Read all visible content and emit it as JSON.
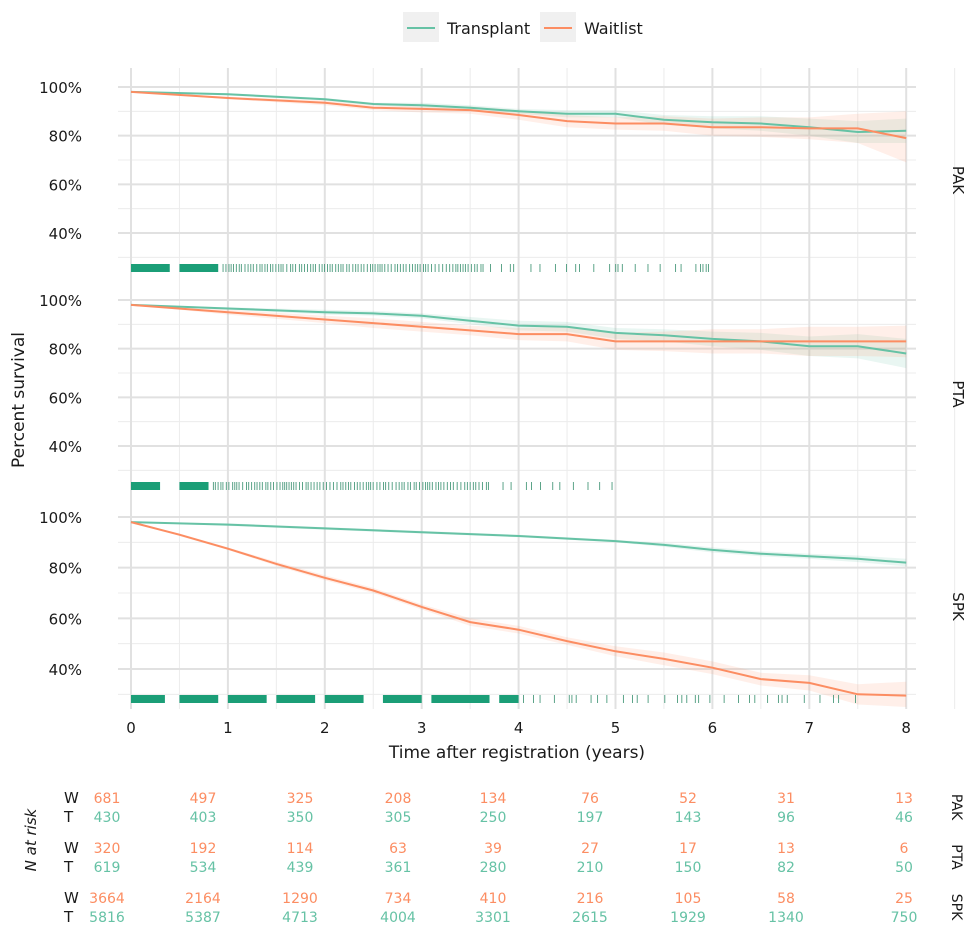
{
  "chart_data": {
    "type": "line",
    "legend": {
      "placement": "top",
      "items": [
        {
          "name": "Transplant",
          "color": "#66c2a5"
        },
        {
          "name": "Waitlist",
          "color": "#fc8d62"
        }
      ]
    },
    "ylabel": "Percent survival",
    "xlabel": "Time after registration (years)",
    "x_ticks": [
      0,
      1,
      2,
      3,
      4,
      5,
      6,
      7,
      8
    ],
    "xlim": [
      0,
      8
    ],
    "y_ticks": [
      "100%",
      "80%",
      "60%",
      "40%"
    ],
    "ylim": [
      25,
      100
    ],
    "panels": [
      {
        "name": "PAK",
        "series": [
          {
            "name": "Transplant",
            "x": [
              0,
              1,
              2,
              2.5,
              3,
              3.5,
              4,
              4.5,
              5,
              5.5,
              6,
              6.5,
              7,
              7.5,
              8
            ],
            "y": [
              98,
              97,
              95,
              93,
              92.5,
              91.5,
              90,
              89,
              89,
              86.5,
              85.5,
              85,
              83.5,
              81.5,
              82
            ],
            "ci_upper": [
              98,
              97.5,
              95.5,
              93.5,
              93.5,
              92.5,
              91,
              90.5,
              90.5,
              88.5,
              88,
              88,
              87,
              86,
              87
            ],
            "ci_lower": [
              98,
              96.5,
              94.5,
              92.5,
              91.5,
              90.5,
              89,
              87.5,
              87.5,
              84.5,
              83,
              82,
              80,
              77,
              77
            ]
          },
          {
            "name": "Waitlist",
            "x": [
              0,
              1,
              2,
              2.5,
              3,
              3.5,
              4,
              4.5,
              5,
              5.5,
              6,
              6.5,
              7,
              7.5,
              8
            ],
            "y": [
              98,
              95.5,
              93.5,
              91.5,
              91,
              90.5,
              88.5,
              86,
              85,
              85,
              83.5,
              83.5,
              83,
              83,
              79
            ],
            "ci_upper": [
              98,
              96,
              94.5,
              92.5,
              92,
              92,
              90.5,
              88.5,
              87.5,
              88,
              87,
              87.5,
              87.5,
              89,
              90
            ],
            "ci_lower": [
              98,
              95,
              92.5,
              90.5,
              89.5,
              89,
              86.5,
              83.5,
              82.5,
              82,
              80,
              79.5,
              78.5,
              77,
              69
            ]
          }
        ]
      },
      {
        "name": "PTA",
        "series": [
          {
            "name": "Transplant",
            "x": [
              0,
              1,
              2,
              2.5,
              3,
              3.5,
              4,
              4.5,
              5,
              5.5,
              6,
              6.5,
              7,
              7.5,
              8
            ],
            "y": [
              98,
              96.5,
              95,
              94.5,
              93.5,
              91.5,
              89.5,
              89,
              86.5,
              85.5,
              84,
              83,
              81,
              81,
              78
            ],
            "ci_upper": [
              98,
              97,
              96,
              95.5,
              94.5,
              93,
              91.5,
              91,
              88.5,
              88,
              87,
              86.5,
              85,
              86,
              84
            ],
            "ci_lower": [
              98,
              96,
              94,
              93.5,
              92.5,
              90,
              87.5,
              87,
              84,
              83,
              81,
              79.5,
              77,
              76,
              72
            ]
          },
          {
            "name": "Waitlist",
            "x": [
              0,
              1,
              2,
              2.5,
              3,
              3.5,
              4,
              4.5,
              5,
              5.5,
              6,
              6.5,
              7,
              7.5,
              8
            ],
            "y": [
              98,
              95,
              92,
              90.5,
              89,
              87.5,
              86,
              86,
              83,
              83,
              83,
              83,
              83,
              83,
              83
            ],
            "ci_upper": [
              98,
              96,
              93.5,
              92.5,
              91,
              89.5,
              88.5,
              89,
              86.5,
              87,
              88,
              88,
              89,
              89,
              89.5
            ],
            "ci_lower": [
              98,
              94,
              90.5,
              88.5,
              87,
              85.5,
              83.5,
              83,
              79.5,
              79,
              78,
              78,
              77,
              77,
              76.5
            ]
          }
        ]
      },
      {
        "name": "SPK",
        "series": [
          {
            "name": "Transplant",
            "x": [
              0,
              1,
              2,
              3,
              4,
              5,
              5.5,
              6,
              6.5,
              7,
              7.5,
              8
            ],
            "y": [
              98,
              97,
              95.5,
              94,
              92.5,
              90.5,
              89,
              87,
              85.5,
              84.5,
              83.5,
              82
            ],
            "ci_upper": [
              98,
              97.5,
              96,
              94.5,
              93,
              91,
              89.8,
              88,
              86.5,
              85.5,
              84.8,
              83.5
            ],
            "ci_lower": [
              98,
              96.5,
              95,
              93.5,
              92,
              90,
              88.2,
              86,
              84.5,
              83.5,
              82.2,
              80.5
            ]
          },
          {
            "name": "Waitlist",
            "x": [
              0,
              0.5,
              1,
              1.5,
              2,
              2.5,
              3,
              3.5,
              4,
              4.5,
              5,
              5.5,
              6,
              6.5,
              7,
              7.5,
              8
            ],
            "y": [
              98,
              93,
              87.5,
              81.5,
              76,
              71,
              64.5,
              58.5,
              55.5,
              51,
              47,
              44,
              40.5,
              36,
              34.5,
              30,
              29.5
            ],
            "ci_upper": [
              98,
              93.5,
              88,
              82.3,
              77,
              72,
              65.5,
              60,
              57,
              52.5,
              49,
              46.5,
              43,
              38.5,
              37.5,
              34,
              35
            ],
            "ci_lower": [
              98,
              92.5,
              87,
              80.7,
              75,
              70,
              63.5,
              57,
              54,
              49.5,
              45,
              41.5,
              38,
              33.5,
              31.5,
              26,
              25
            ]
          }
        ]
      }
    ],
    "at_risk": {
      "label": "N at risk",
      "row_labels": {
        "W": "W",
        "T": "T"
      },
      "times": [
        0,
        1,
        2,
        3,
        4,
        5,
        6,
        7,
        8
      ],
      "groups": [
        {
          "name": "PAK",
          "W": [
            "681",
            "497",
            "325",
            "208",
            "134",
            "76",
            "52",
            "31",
            "13"
          ],
          "T": [
            "430",
            "403",
            "350",
            "305",
            "250",
            "197",
            "143",
            "96",
            "46"
          ]
        },
        {
          "name": "PTA",
          "W": [
            "320",
            "192",
            "114",
            "63",
            "39",
            "27",
            "17",
            "13",
            "6"
          ],
          "T": [
            "619",
            "534",
            "439",
            "361",
            "280",
            "210",
            "150",
            "82",
            "50"
          ]
        },
        {
          "name": "SPK",
          "W": [
            "3664",
            "2164",
            "1290",
            "734",
            "410",
            "216",
            "105",
            "58",
            "25"
          ],
          "T": [
            "5816",
            "5387",
            "4713",
            "4004",
            "3301",
            "2615",
            "1929",
            "1340",
            "750"
          ]
        }
      ]
    }
  }
}
